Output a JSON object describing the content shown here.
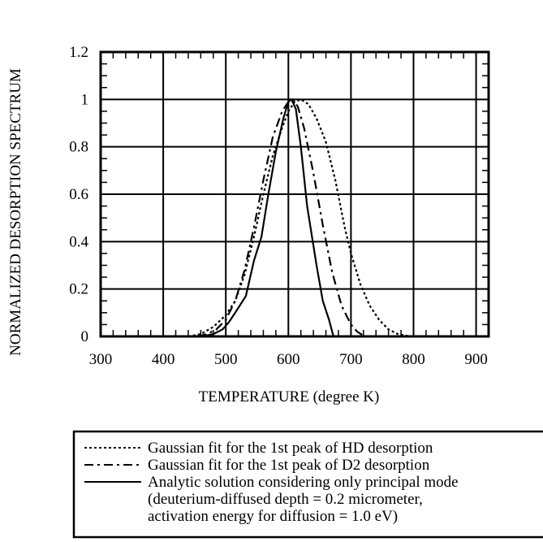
{
  "chart_data": {
    "type": "line",
    "title": "",
    "xlabel": "TEMPERATURE (degree K)",
    "ylabel": "NORMALIZED DESORPTION SPECTRUM",
    "xlim": [
      300,
      920
    ],
    "ylim": [
      0,
      1.2
    ],
    "x_ticks": [
      "300",
      "400",
      "500",
      "600",
      "700",
      "800",
      "900"
    ],
    "y_ticks": [
      "0",
      "0.2",
      "0.4",
      "0.6",
      "0.8",
      "1",
      "1.2"
    ],
    "grid": true,
    "legend_position": "below",
    "series": [
      {
        "name": "Gaussian fit for the 1st peak of HD desorption",
        "style": "dotted",
        "points": [
          [
            440,
            0
          ],
          [
            460,
            0.01
          ],
          [
            480,
            0.04
          ],
          [
            500,
            0.09
          ],
          [
            515,
            0.15
          ],
          [
            530,
            0.26
          ],
          [
            545,
            0.42
          ],
          [
            560,
            0.6
          ],
          [
            575,
            0.76
          ],
          [
            590,
            0.88
          ],
          [
            600,
            0.95
          ],
          [
            610,
            0.99
          ],
          [
            620,
            1.0
          ],
          [
            632,
            0.98
          ],
          [
            645,
            0.92
          ],
          [
            660,
            0.82
          ],
          [
            675,
            0.66
          ],
          [
            690,
            0.46
          ],
          [
            700,
            0.35
          ],
          [
            715,
            0.22
          ],
          [
            730,
            0.13
          ],
          [
            745,
            0.07
          ],
          [
            760,
            0.03
          ],
          [
            775,
            0.01
          ],
          [
            795,
            0
          ]
        ]
      },
      {
        "name": "Gaussian fit for the 1st peak of D2 desorption",
        "style": "dash-dot",
        "points": [
          [
            455,
            0
          ],
          [
            470,
            0.01
          ],
          [
            485,
            0.03
          ],
          [
            500,
            0.07
          ],
          [
            515,
            0.15
          ],
          [
            530,
            0.28
          ],
          [
            545,
            0.46
          ],
          [
            560,
            0.66
          ],
          [
            575,
            0.84
          ],
          [
            590,
            0.95
          ],
          [
            600,
            0.99
          ],
          [
            607,
            1.0
          ],
          [
            615,
            0.97
          ],
          [
            625,
            0.88
          ],
          [
            640,
            0.69
          ],
          [
            655,
            0.47
          ],
          [
            670,
            0.27
          ],
          [
            685,
            0.13
          ],
          [
            700,
            0.05
          ],
          [
            710,
            0.02
          ],
          [
            722,
            0
          ]
        ]
      },
      {
        "name": "Analytic solution considering only principal mode",
        "style": "solid",
        "points": [
          [
            462,
            0
          ],
          [
            480,
            0.01
          ],
          [
            495,
            0.03
          ],
          [
            505,
            0.06
          ],
          [
            515,
            0.1
          ],
          [
            532,
            0.17
          ],
          [
            545,
            0.32
          ],
          [
            557,
            0.42
          ],
          [
            568,
            0.6
          ],
          [
            580,
            0.78
          ],
          [
            592,
            0.92
          ],
          [
            600,
            0.99
          ],
          [
            605,
            1.0
          ],
          [
            612,
            0.96
          ],
          [
            620,
            0.8
          ],
          [
            630,
            0.55
          ],
          [
            645,
            0.3
          ],
          [
            655,
            0.15
          ],
          [
            665,
            0.07
          ],
          [
            672,
            0
          ]
        ]
      }
    ],
    "legend_note_lines": [
      "(deuterium-diffused depth = 0.2 micrometer,",
      "activation energy for diffusion = 1.0 eV)"
    ]
  }
}
